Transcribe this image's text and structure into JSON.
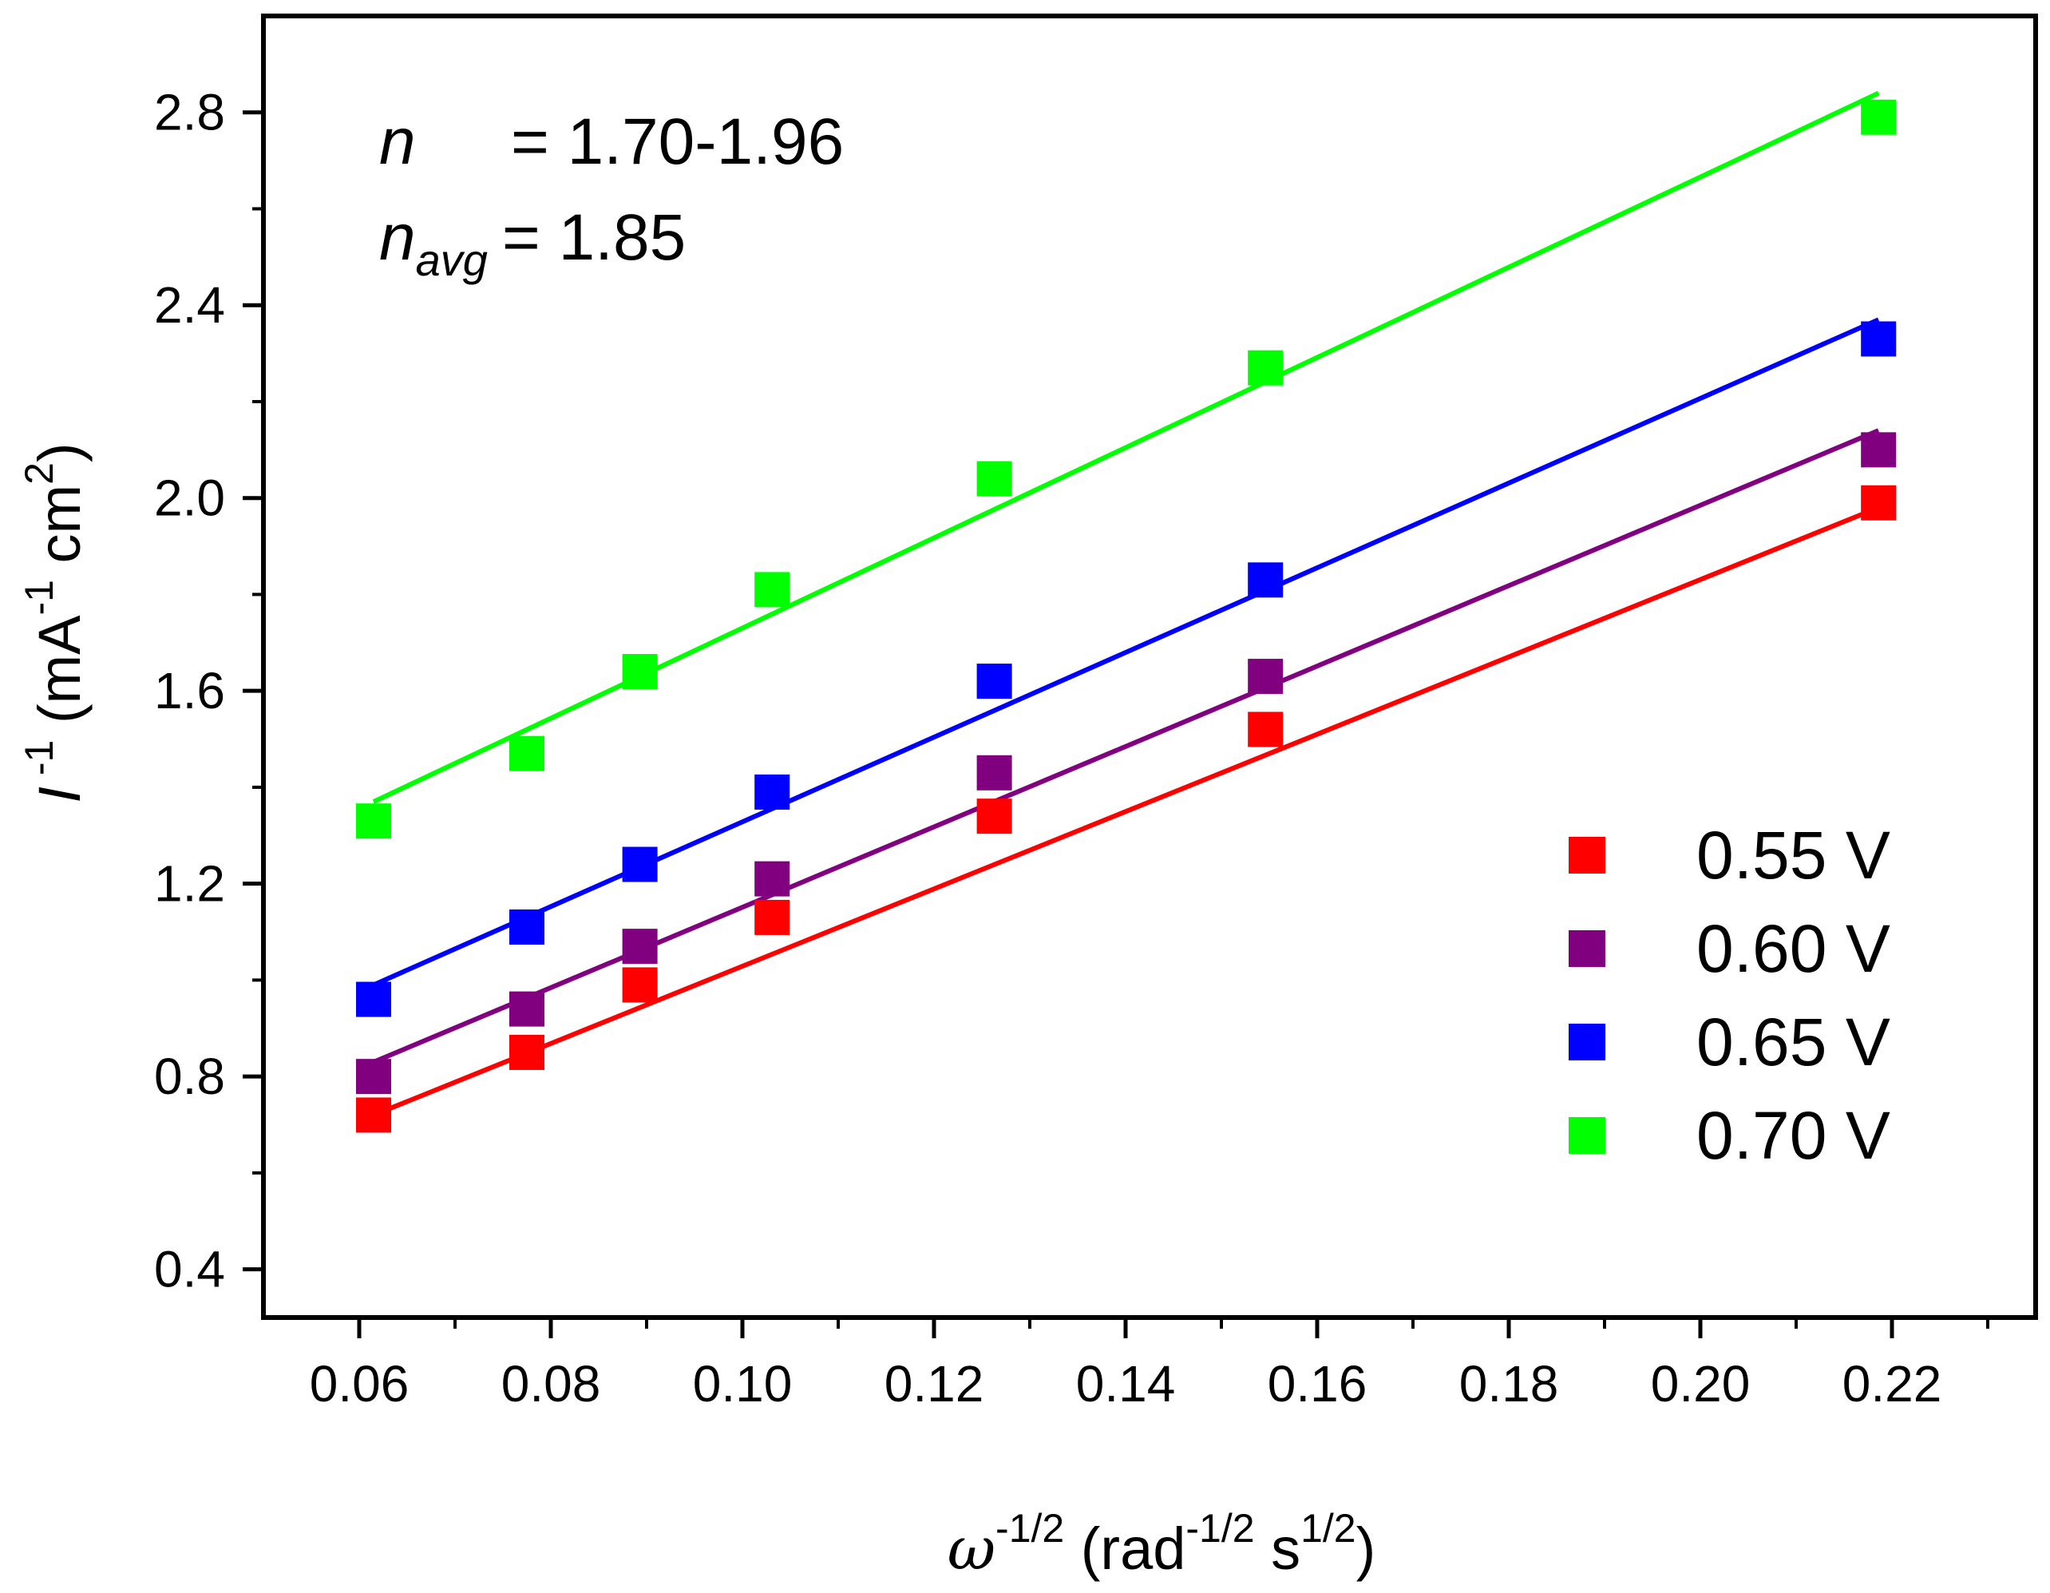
{
  "chart_data": {
    "type": "scatter",
    "title": "",
    "xlabel": {
      "base": "ω",
      "sup": "-1/2",
      "rest": " (rad",
      "sup2": "-1/2",
      "rest2": " s",
      "sup3": "1/2",
      "close": ")"
    },
    "ylabel": {
      "base": "I",
      "sup": " -1",
      "rest": " (mA",
      "sup2": "-1",
      "rest2": " cm",
      "sup3": "2",
      "close": ")"
    },
    "xlim": [
      0.05,
      0.235
    ],
    "ylim": [
      0.3,
      3.0
    ],
    "xticks": [
      0.06,
      0.08,
      0.1,
      0.12,
      0.14,
      0.16,
      0.18,
      0.2,
      0.22
    ],
    "xtick_labels": [
      "0.06",
      "0.08",
      "0.10",
      "0.12",
      "0.14",
      "0.16",
      "0.18",
      "0.20",
      "0.22"
    ],
    "yticks": [
      0.4,
      0.8,
      1.2,
      1.6,
      2.0,
      2.4,
      2.8
    ],
    "ytick_labels": [
      "0.4",
      "0.8",
      "1.2",
      "1.6",
      "2.0",
      "2.4",
      "2.8"
    ],
    "x": [
      0.0615,
      0.0775,
      0.0893,
      0.1031,
      0.1263,
      0.1546,
      0.2186
    ],
    "series": [
      {
        "name": "0.55 V",
        "color": "#ff0000",
        "values": [
          0.72,
          0.85,
          0.99,
          1.13,
          1.34,
          1.52,
          1.99
        ],
        "fit": [
          0.72,
          1.98
        ]
      },
      {
        "name": "0.60 V",
        "color": "#800080",
        "values": [
          0.8,
          0.94,
          1.07,
          1.21,
          1.43,
          1.63,
          2.1
        ],
        "fit": [
          0.83,
          2.14
        ]
      },
      {
        "name": "0.65 V",
        "color": "#0000ff",
        "values": [
          0.96,
          1.11,
          1.24,
          1.39,
          1.62,
          1.83,
          2.33
        ],
        "fit": [
          0.99,
          2.37
        ]
      },
      {
        "name": "0.70 V",
        "color": "#00ff00",
        "values": [
          1.33,
          1.47,
          1.64,
          1.81,
          2.04,
          2.27,
          2.79
        ],
        "fit": [
          1.37,
          2.84
        ]
      }
    ],
    "legend_position": "bottom-right",
    "annotations": {
      "line1": {
        "var": "n",
        "text": "= 1.70-1.96"
      },
      "line2": {
        "var": "n",
        "sub": "avg",
        "text": "= 1.85"
      }
    }
  }
}
